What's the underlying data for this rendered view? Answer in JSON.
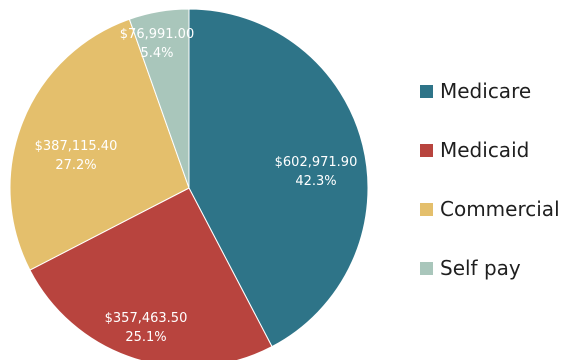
{
  "chart_data": {
    "type": "pie",
    "categories": [
      "Medicare",
      "Medicaid",
      "Commercial",
      "Self pay"
    ],
    "values": [
      602971.9,
      357463.5,
      387115.4,
      76991.0
    ],
    "value_labels": [
      "$602,971.90",
      "$357,463.50",
      "$387,115.40",
      "$76,991.00"
    ],
    "percent_labels": [
      "42.3%",
      "25.1%",
      "27.2%",
      "5.4%"
    ],
    "colors": [
      "#2e7488",
      "#b8443e",
      "#e4bf6c",
      "#a9c6bb"
    ],
    "legend": "right"
  }
}
